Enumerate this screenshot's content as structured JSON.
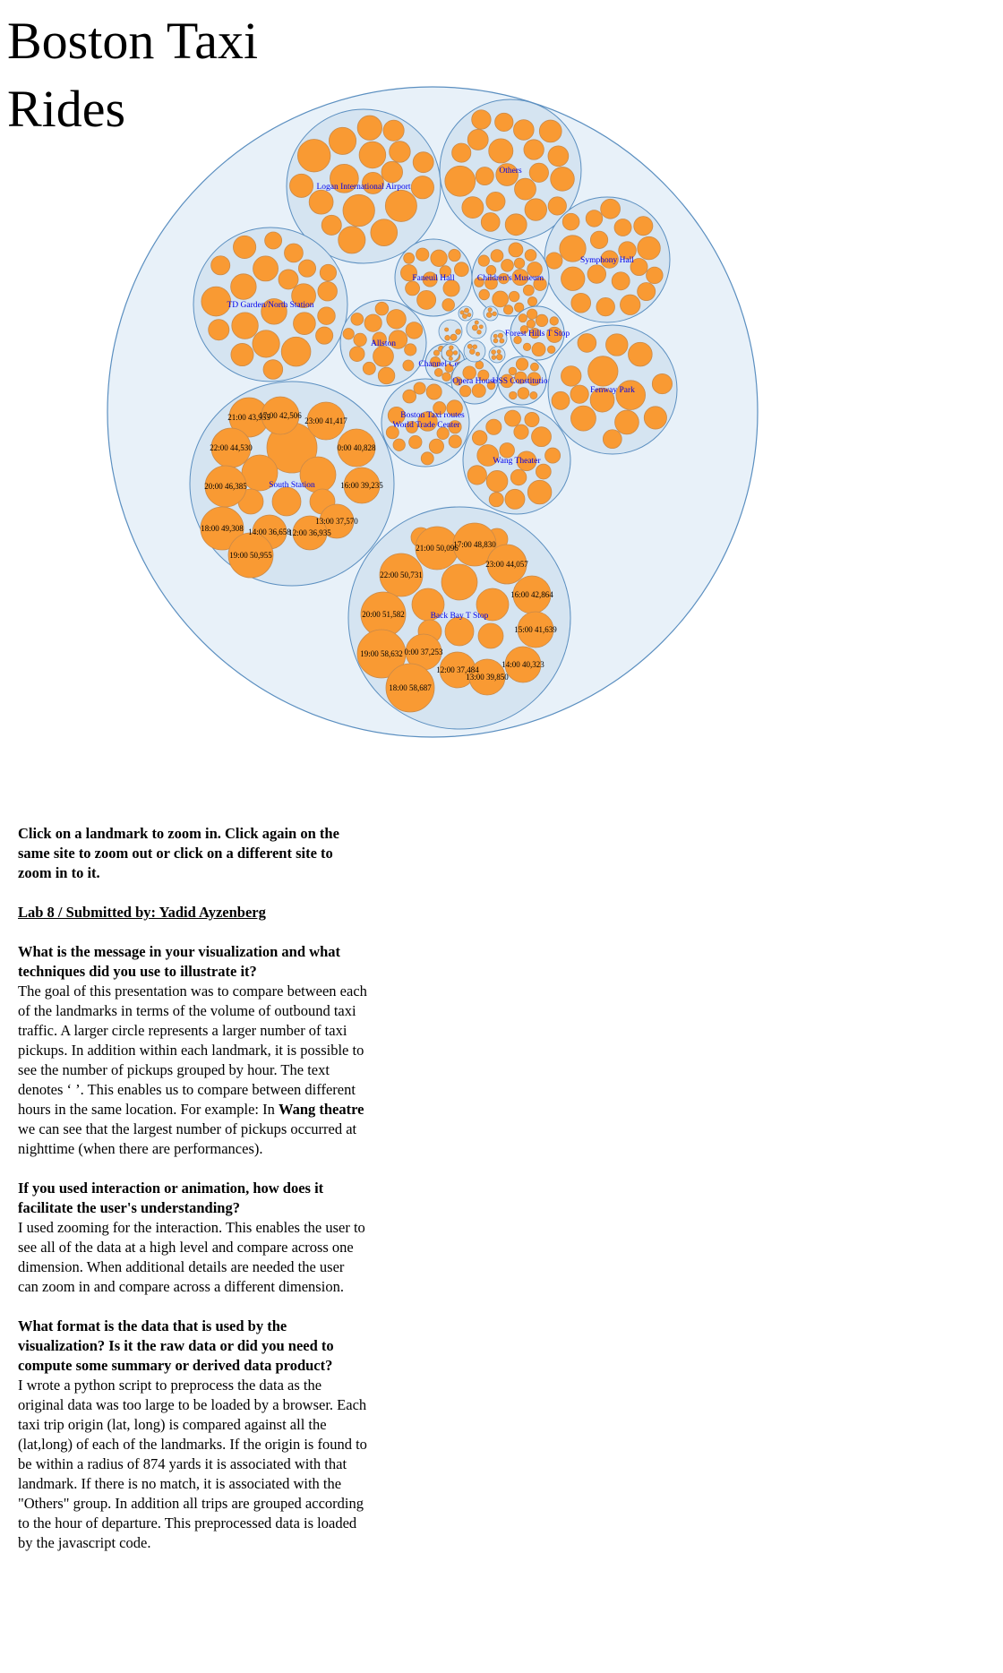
{
  "page": {
    "title": "Boston Taxi Rides"
  },
  "text": {
    "instructions": "Click on a landmark to zoom in. Click again on the same site to zoom out or click on a different site to zoom in to it.",
    "credit": "Lab 8 / Submitted by: Yadid Ayzenberg",
    "q1": "What is the message in your visualization and what techniques did you use to illustrate it?",
    "a1_part1": "The goal of this presentation was to compare between each of the landmarks in terms of the volume of outbound taxi traffic. A larger circle represents a larger number of taxi pickups. In addition within each landmark, it is possible to see the number of pickups grouped by hour. The text denotes ‘ ’. This enables us to compare between different hours in the same location. For example: In",
    "a1_bold": "Wang theatre",
    "a1_part2": "we can see that the largest number of pickups occurred at nighttime (when there are performances).",
    "q2": "If you used interaction or animation, how does it facilitate the user's understanding?",
    "a2": "I used zooming for the interaction. This enables the user to see all of the data at a high level and compare across one dimension. When additional details are needed the user can zoom in and compare across a different dimension.",
    "q3": "What format is the data that is used by the visualization? Is it the raw data or did you need to compute some summary or derived data product?",
    "a3": "I wrote a python script to preprocess the data as the original data was too large to be loaded by a browser. Each taxi trip origin (lat, long) is compared against all the (lat,long) of each of the landmarks. If the origin is found to be within a radius of 874 yards it is associated with that landmark. If there is no match, it is associated with the \"Others\" group. In addition all trips are grouped according to the hour of departure. This preprocessed data is loaded by the javascript code."
  },
  "colors": {
    "root_fill": "#e8f1f9",
    "group_fill": "#d5e4f1",
    "stroke": "#5b8fc0",
    "leaf_fill": "#f99a33",
    "leaf_stroke": "#c98a4a",
    "small_leaf_fill": "#b9c6d2"
  },
  "chart_data": {
    "type": "circle-packing",
    "groups": [
      {
        "name": "Logan International Airport"
      },
      {
        "name": "Others"
      },
      {
        "name": "Symphony Hall"
      },
      {
        "name": "TD Garden/North Station"
      },
      {
        "name": "Faneuil Hall"
      },
      {
        "name": "Children's Museum"
      },
      {
        "name": "Allston"
      },
      {
        "name": "Forest Hills T Stop"
      },
      {
        "name": "Channel Center"
      },
      {
        "name": "Opera House"
      },
      {
        "name": "USS Constitution"
      },
      {
        "name": "Fenway Park"
      },
      {
        "name": "Boston Taxi routes"
      },
      {
        "name": "World Trade Center"
      },
      {
        "name": "Wang Theater"
      },
      {
        "name": "South Station",
        "hours": [
          {
            "label": "21:00 43,955",
            "value": 43955
          },
          {
            "label": "17:00 42,506",
            "value": 42506
          },
          {
            "label": "23:00 41,417",
            "value": 41417
          },
          {
            "label": "22:00 44,530",
            "value": 44530
          },
          {
            "label": "0:00 40,828",
            "value": 40828
          },
          {
            "label": "20:00 46,385",
            "value": 46385
          },
          {
            "label": "16:00 39,235",
            "value": 39235
          },
          {
            "label": "13:00 37,570",
            "value": 37570
          },
          {
            "label": "18:00 49,308",
            "value": 49308
          },
          {
            "label": "14:00 36,658",
            "value": 36658
          },
          {
            "label": "12:00 36,935",
            "value": 36935
          },
          {
            "label": "19:00 50,955",
            "value": 50955
          }
        ]
      },
      {
        "name": "Back Bay T Stop",
        "hours": [
          {
            "label": "21:00 50,096",
            "value": 50096
          },
          {
            "label": "17:00 48,830",
            "value": 48830
          },
          {
            "label": "23:00 44,057",
            "value": 44057
          },
          {
            "label": "22:00 50,731",
            "value": 50731
          },
          {
            "label": "16:00 42,864",
            "value": 42864
          },
          {
            "label": "20:00 51,582",
            "value": 51582
          },
          {
            "label": "15:00 41,639",
            "value": 41639
          },
          {
            "label": "19:00 58,632",
            "value": 58632
          },
          {
            "label": "0:00 37,253",
            "value": 37253
          },
          {
            "label": "14:00 40,323",
            "value": 40323
          },
          {
            "label": "12:00 37,484",
            "value": 37484
          },
          {
            "label": "13:00 39,850",
            "value": 39850
          },
          {
            "label": "18:00 58,687",
            "value": 58687
          }
        ]
      }
    ]
  }
}
